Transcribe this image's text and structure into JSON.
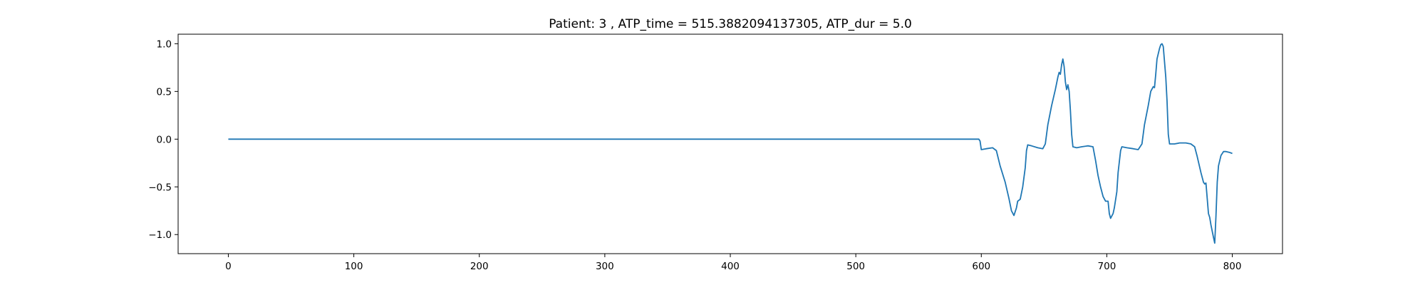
{
  "chart_data": {
    "type": "line",
    "title": "Patient: 3 , ATP_time = 515.3882094137305, ATP_dur = 5.0",
    "xlabel": "",
    "ylabel": "",
    "xlim": [
      -40,
      840
    ],
    "ylim": [
      -1.2,
      1.1
    ],
    "x_ticks": [
      0,
      100,
      200,
      300,
      400,
      500,
      600,
      700,
      800
    ],
    "y_ticks": [
      -1.0,
      -0.5,
      0.0,
      0.5,
      1.0
    ],
    "y_tick_labels": [
      "−1.0",
      "−0.5",
      "0.0",
      "0.5",
      "1.0"
    ],
    "grid": false,
    "legend": "none",
    "line_color": "#1f77b4",
    "series": [
      {
        "points": [
          [
            0,
            0.0
          ],
          [
            598,
            0.0
          ],
          [
            599,
            -0.02
          ],
          [
            600,
            -0.11
          ],
          [
            604,
            -0.1
          ],
          [
            609,
            -0.09
          ],
          [
            612,
            -0.12
          ],
          [
            615,
            -0.28
          ],
          [
            619,
            -0.45
          ],
          [
            622,
            -0.62
          ],
          [
            624,
            -0.75
          ],
          [
            626,
            -0.8
          ],
          [
            628,
            -0.72
          ],
          [
            629,
            -0.65
          ],
          [
            631,
            -0.63
          ],
          [
            633,
            -0.5
          ],
          [
            635,
            -0.3
          ],
          [
            636,
            -0.12
          ],
          [
            637,
            -0.06
          ],
          [
            640,
            -0.07
          ],
          [
            645,
            -0.09
          ],
          [
            649,
            -0.1
          ],
          [
            651,
            -0.05
          ],
          [
            653,
            0.15
          ],
          [
            656,
            0.35
          ],
          [
            659,
            0.52
          ],
          [
            661,
            0.65
          ],
          [
            662,
            0.7
          ],
          [
            663,
            0.68
          ],
          [
            664,
            0.78
          ],
          [
            665,
            0.84
          ],
          [
            666,
            0.76
          ],
          [
            667,
            0.6
          ],
          [
            668,
            0.52
          ],
          [
            669,
            0.57
          ],
          [
            670,
            0.5
          ],
          [
            671,
            0.3
          ],
          [
            672,
            0.05
          ],
          [
            673,
            -0.08
          ],
          [
            676,
            -0.09
          ],
          [
            680,
            -0.08
          ],
          [
            685,
            -0.07
          ],
          [
            689,
            -0.08
          ],
          [
            691,
            -0.22
          ],
          [
            693,
            -0.38
          ],
          [
            695,
            -0.5
          ],
          [
            697,
            -0.6
          ],
          [
            699,
            -0.65
          ],
          [
            701,
            -0.65
          ],
          [
            702,
            -0.78
          ],
          [
            703,
            -0.83
          ],
          [
            705,
            -0.78
          ],
          [
            706,
            -0.72
          ],
          [
            708,
            -0.55
          ],
          [
            709,
            -0.35
          ],
          [
            711,
            -0.12
          ],
          [
            712,
            -0.08
          ],
          [
            716,
            -0.09
          ],
          [
            721,
            -0.1
          ],
          [
            725,
            -0.11
          ],
          [
            728,
            -0.05
          ],
          [
            730,
            0.15
          ],
          [
            733,
            0.35
          ],
          [
            735,
            0.5
          ],
          [
            737,
            0.55
          ],
          [
            738,
            0.54
          ],
          [
            739,
            0.68
          ],
          [
            740,
            0.84
          ],
          [
            742,
            0.95
          ],
          [
            743,
            0.99
          ],
          [
            744,
            1.0
          ],
          [
            745,
            0.97
          ],
          [
            747,
            0.65
          ],
          [
            748,
            0.4
          ],
          [
            749,
            0.05
          ],
          [
            750,
            -0.05
          ],
          [
            754,
            -0.05
          ],
          [
            758,
            -0.04
          ],
          [
            763,
            -0.04
          ],
          [
            767,
            -0.05
          ],
          [
            770,
            -0.08
          ],
          [
            772,
            -0.18
          ],
          [
            775,
            -0.35
          ],
          [
            777,
            -0.45
          ],
          [
            778,
            -0.47
          ],
          [
            779,
            -0.46
          ],
          [
            780,
            -0.62
          ],
          [
            781,
            -0.78
          ],
          [
            782,
            -0.82
          ],
          [
            783,
            -0.9
          ],
          [
            785,
            -1.03
          ],
          [
            786,
            -1.09
          ],
          [
            787,
            -0.8
          ],
          [
            788,
            -0.45
          ],
          [
            789,
            -0.28
          ],
          [
            791,
            -0.17
          ],
          [
            793,
            -0.13
          ],
          [
            795,
            -0.13
          ],
          [
            798,
            -0.14
          ],
          [
            800,
            -0.15
          ]
        ]
      }
    ]
  }
}
